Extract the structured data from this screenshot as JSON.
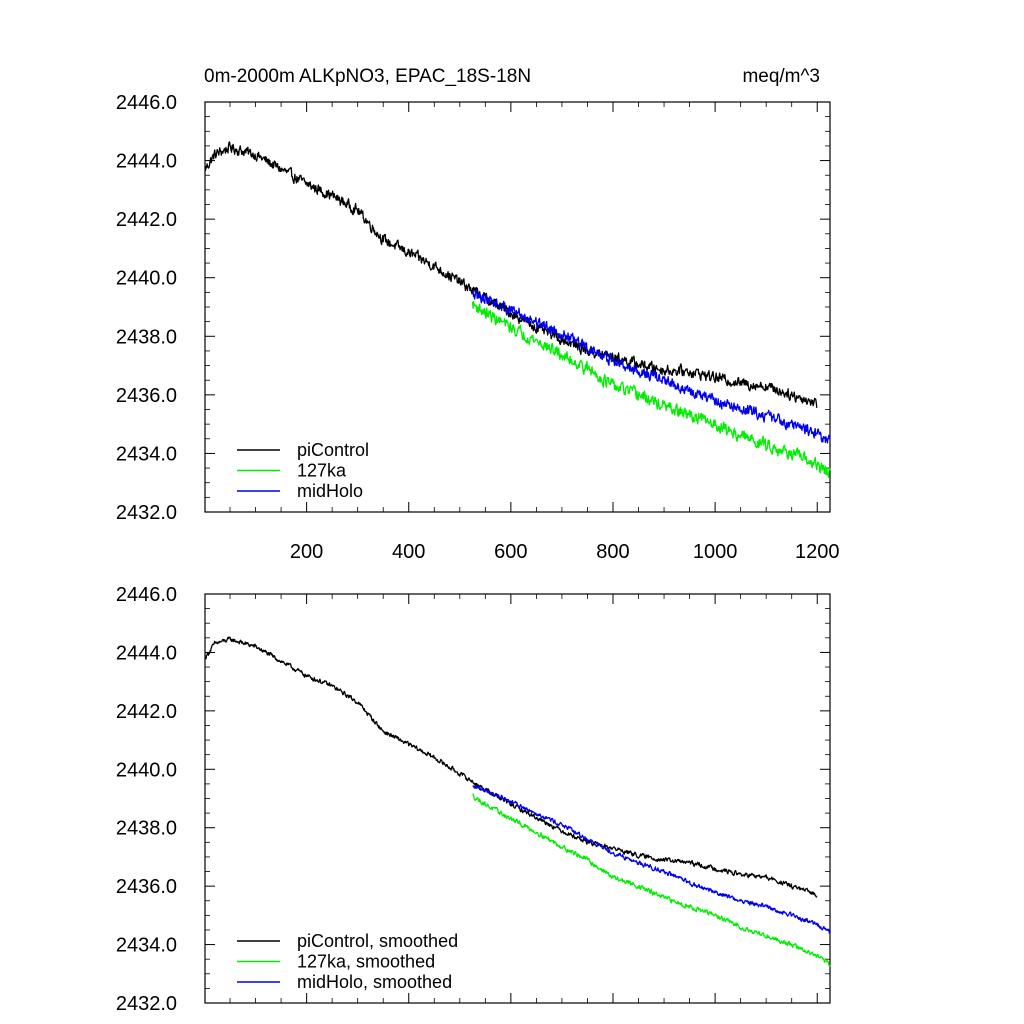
{
  "colors": {
    "piControl": "#000000",
    "127ka": "#00ee00",
    "midHolo": "#0000ee"
  },
  "chart_data": [
    {
      "type": "line",
      "title": "0m-2000m ALKpNO3, EPAC_18S-18N",
      "units": "meq/m^3",
      "xlabel": "",
      "ylabel": "",
      "xlim": [
        1,
        1225
      ],
      "ylim": [
        2432.0,
        2446.0
      ],
      "yticks": [
        "2432.0",
        "2434.0",
        "2436.0",
        "2438.0",
        "2440.0",
        "2442.0",
        "2444.0",
        "2446.0"
      ],
      "xticks": [
        "200",
        "400",
        "600",
        "800",
        "1000",
        "1200"
      ],
      "legend_position": "bottom-left",
      "series": [
        {
          "name": "piControl",
          "color": "#000000",
          "x_start": 1,
          "x_end": 1200,
          "noise": 0.28,
          "knots_x": [
            1,
            20,
            50,
            100,
            150,
            200,
            250,
            300,
            350,
            400,
            450,
            500,
            550,
            600,
            650,
            700,
            750,
            800,
            850,
            900,
            950,
            1000,
            1050,
            1100,
            1150,
            1200
          ],
          "knots_y": [
            2443.7,
            2444.2,
            2444.45,
            2444.2,
            2443.7,
            2443.2,
            2442.8,
            2442.3,
            2441.3,
            2440.85,
            2440.4,
            2439.85,
            2439.3,
            2438.8,
            2438.3,
            2437.9,
            2437.5,
            2437.3,
            2437.05,
            2436.85,
            2436.8,
            2436.6,
            2436.4,
            2436.3,
            2436.0,
            2435.7
          ]
        },
        {
          "name": "127ka",
          "color": "#00ee00",
          "x_start": 525,
          "x_end": 1225,
          "noise": 0.32,
          "knots_x": [
            525,
            550,
            600,
            650,
            700,
            750,
            800,
            850,
            900,
            950,
            1000,
            1050,
            1100,
            1150,
            1200,
            1225
          ],
          "knots_y": [
            2439.1,
            2438.8,
            2438.3,
            2437.85,
            2437.35,
            2436.9,
            2436.3,
            2436.0,
            2435.6,
            2435.3,
            2435.0,
            2434.6,
            2434.3,
            2434.0,
            2433.6,
            2433.3
          ]
        },
        {
          "name": "midHolo",
          "color": "#0000ee",
          "x_start": 525,
          "x_end": 1225,
          "noise": 0.3,
          "knots_x": [
            525,
            550,
            600,
            650,
            700,
            750,
            800,
            850,
            900,
            950,
            1000,
            1050,
            1100,
            1150,
            1200,
            1225
          ],
          "knots_y": [
            2439.4,
            2439.3,
            2438.9,
            2438.5,
            2438.1,
            2437.6,
            2437.15,
            2436.8,
            2436.5,
            2436.1,
            2435.8,
            2435.5,
            2435.3,
            2435.0,
            2434.7,
            2434.4
          ]
        }
      ]
    },
    {
      "type": "line",
      "title": "",
      "xlabel": "",
      "ylabel": "",
      "xlim": [
        1,
        1225
      ],
      "ylim": [
        2432.0,
        2446.0
      ],
      "yticks": [
        "2432.0",
        "2434.0",
        "2436.0",
        "2438.0",
        "2440.0",
        "2442.0",
        "2444.0",
        "2446.0"
      ],
      "xticks": [],
      "legend_position": "bottom-left",
      "series": [
        {
          "name": "piControl, smoothed",
          "color": "#000000",
          "x_start": 1,
          "x_end": 1200,
          "noise": 0.12,
          "knots_x": [
            1,
            20,
            50,
            100,
            150,
            200,
            250,
            300,
            350,
            400,
            450,
            500,
            550,
            600,
            650,
            700,
            750,
            800,
            850,
            900,
            950,
            1000,
            1050,
            1100,
            1150,
            1200
          ],
          "knots_y": [
            2443.8,
            2444.3,
            2444.45,
            2444.2,
            2443.7,
            2443.2,
            2442.85,
            2442.3,
            2441.3,
            2440.85,
            2440.4,
            2439.85,
            2439.3,
            2438.8,
            2438.35,
            2437.9,
            2437.5,
            2437.3,
            2437.05,
            2436.9,
            2436.8,
            2436.6,
            2436.4,
            2436.3,
            2436.0,
            2435.7
          ]
        },
        {
          "name": "127ka, smoothed",
          "color": "#00ee00",
          "x_start": 525,
          "x_end": 1225,
          "noise": 0.13,
          "knots_x": [
            525,
            550,
            600,
            650,
            700,
            750,
            800,
            850,
            900,
            950,
            1000,
            1050,
            1100,
            1150,
            1200,
            1225
          ],
          "knots_y": [
            2439.1,
            2438.8,
            2438.3,
            2437.85,
            2437.35,
            2436.9,
            2436.3,
            2436.0,
            2435.6,
            2435.3,
            2435.0,
            2434.6,
            2434.3,
            2434.0,
            2433.6,
            2433.3
          ]
        },
        {
          "name": "midHolo, smoothed",
          "color": "#0000ee",
          "x_start": 525,
          "x_end": 1225,
          "noise": 0.12,
          "knots_x": [
            525,
            550,
            600,
            650,
            700,
            750,
            800,
            850,
            900,
            950,
            1000,
            1050,
            1100,
            1150,
            1200,
            1225
          ],
          "knots_y": [
            2439.4,
            2439.3,
            2438.9,
            2438.5,
            2438.1,
            2437.6,
            2437.15,
            2436.8,
            2436.5,
            2436.1,
            2435.8,
            2435.5,
            2435.3,
            2435.0,
            2434.7,
            2434.4
          ]
        }
      ]
    }
  ]
}
